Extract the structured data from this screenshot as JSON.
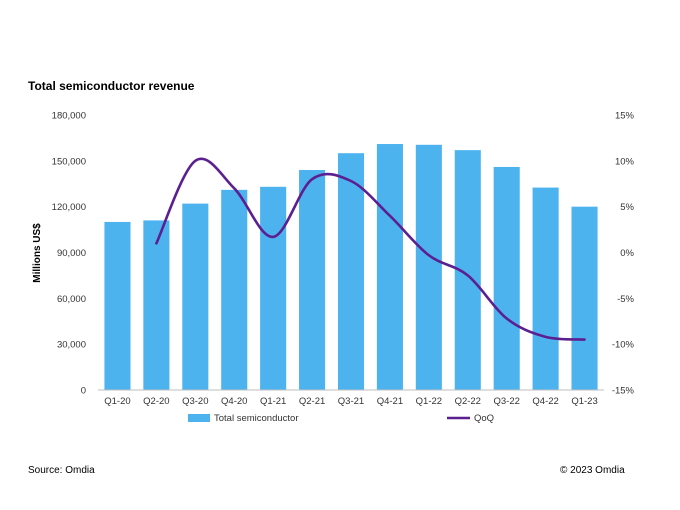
{
  "chart_data": {
    "type": "bar",
    "title": "Total semiconductor revenue",
    "ylabel": "Millions US$",
    "categories": [
      "Q1-20",
      "Q2-20",
      "Q3-20",
      "Q4-20",
      "Q1-21",
      "Q2-21",
      "Q3-21",
      "Q4-21",
      "Q1-22",
      "Q2-22",
      "Q3-22",
      "Q4-22",
      "Q1-23"
    ],
    "ylim": [
      0,
      180000
    ],
    "y_ticks": [
      "0",
      "30,000",
      "60,000",
      "90,000",
      "120,000",
      "150,000",
      "180,000"
    ],
    "y2lim": [
      -15,
      15
    ],
    "y2_ticks": [
      "-15%",
      "-10%",
      "-5%",
      "0%",
      "5%",
      "10%",
      "15%"
    ],
    "series": [
      {
        "name": "Total semiconductor",
        "type": "bar",
        "color": "#4db3ef",
        "values": [
          110000,
          111000,
          122000,
          131000,
          133000,
          144000,
          155000,
          161000,
          160500,
          157000,
          146000,
          132500,
          120000
        ]
      },
      {
        "name": "QoQ",
        "type": "line",
        "axis": "right",
        "color": "#5c1f91",
        "values": [
          null,
          1.0,
          10.0,
          7.0,
          1.7,
          8.0,
          7.8,
          4.0,
          -0.3,
          -2.5,
          -7.2,
          -9.2,
          -9.5
        ]
      }
    ],
    "grid": false,
    "legend_position": "bottom"
  },
  "footer": {
    "source": "Source: Omdia",
    "copyright": "© 2023 Omdia"
  }
}
